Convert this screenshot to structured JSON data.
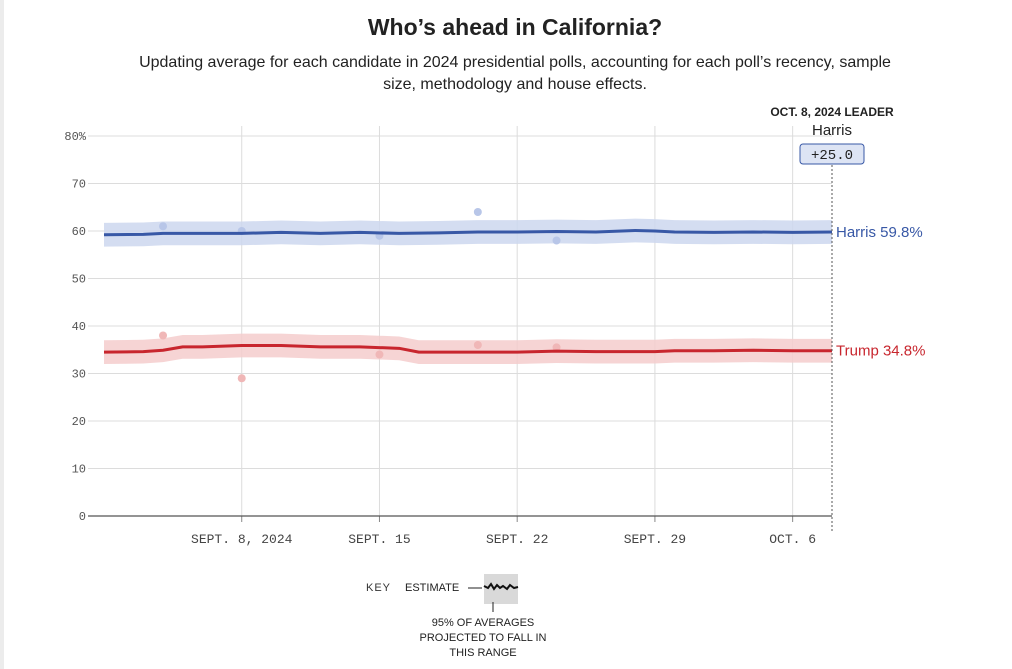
{
  "chart_data": {
    "type": "line",
    "title": "Who’s ahead in California?",
    "subtitle": "Updating average for each candidate in 2024 presidential polls, accounting for each poll’s recency, sample size, methodology and house effects.",
    "xlabel": "",
    "ylabel": "",
    "ylim": [
      0,
      80
    ],
    "y_ticks": [
      0,
      10,
      20,
      30,
      40,
      50,
      60,
      70,
      80
    ],
    "y_tick_labels": [
      "0",
      "10",
      "20",
      "30",
      "40",
      "50",
      "60",
      "70",
      "80%"
    ],
    "x_start_day": 0,
    "x_end_day": 37,
    "x_ticks": [
      {
        "day": 7,
        "label": "SEPT. 8, 2024"
      },
      {
        "day": 14,
        "label": "SEPT. 15"
      },
      {
        "day": 21,
        "label": "SEPT. 22"
      },
      {
        "day": 28,
        "label": "SEPT. 29"
      },
      {
        "day": 35,
        "label": "OCT. 6"
      }
    ],
    "grid": true,
    "series": [
      {
        "name": "Harris",
        "color": "#3858a6",
        "band_color": "#cdd7ef",
        "dot_color": "#b8c6e8",
        "end_label": "Harris 59.8%",
        "x": [
          0,
          2,
          3,
          5,
          7,
          9,
          11,
          13,
          15,
          17,
          19,
          21,
          23,
          25,
          27,
          28,
          29,
          31,
          33,
          35,
          37
        ],
        "values": [
          59.2,
          59.3,
          59.5,
          59.5,
          59.5,
          59.7,
          59.5,
          59.7,
          59.5,
          59.6,
          59.8,
          59.8,
          59.9,
          59.8,
          60.1,
          60.0,
          59.8,
          59.7,
          59.8,
          59.7,
          59.8
        ],
        "band": 2.5,
        "polls": [
          {
            "x": 3,
            "y": 61
          },
          {
            "x": 7,
            "y": 60
          },
          {
            "x": 14,
            "y": 59
          },
          {
            "x": 19,
            "y": 64
          },
          {
            "x": 23,
            "y": 58
          }
        ]
      },
      {
        "name": "Trump",
        "color": "#c8262e",
        "band_color": "#f5cdcd",
        "dot_color": "#f0b7b7",
        "end_label": "Trump 34.8%",
        "x": [
          0,
          2,
          3,
          4,
          5,
          7,
          9,
          11,
          13,
          15,
          16,
          17,
          19,
          21,
          23,
          25,
          27,
          28,
          29,
          31,
          33,
          35,
          37
        ],
        "values": [
          34.5,
          34.6,
          34.9,
          35.6,
          35.6,
          35.9,
          35.9,
          35.6,
          35.6,
          35.3,
          34.5,
          34.5,
          34.5,
          34.5,
          34.7,
          34.6,
          34.6,
          34.6,
          34.8,
          34.8,
          34.9,
          34.8,
          34.8
        ],
        "band": 2.5,
        "polls": [
          {
            "x": 3,
            "y": 38
          },
          {
            "x": 7,
            "y": 29
          },
          {
            "x": 14,
            "y": 34
          },
          {
            "x": 19,
            "y": 36
          },
          {
            "x": 23,
            "y": 35.5
          }
        ]
      }
    ],
    "leader": {
      "date_label": "OCT. 8, 2024 LEADER",
      "name": "Harris",
      "margin": "+25.0"
    }
  },
  "key": {
    "label": "KEY",
    "estimate": "ESTIMATE",
    "note_line1": "95% OF AVERAGES",
    "note_line2": "PROJECTED TO FALL IN",
    "note_line3": "THIS RANGE"
  }
}
